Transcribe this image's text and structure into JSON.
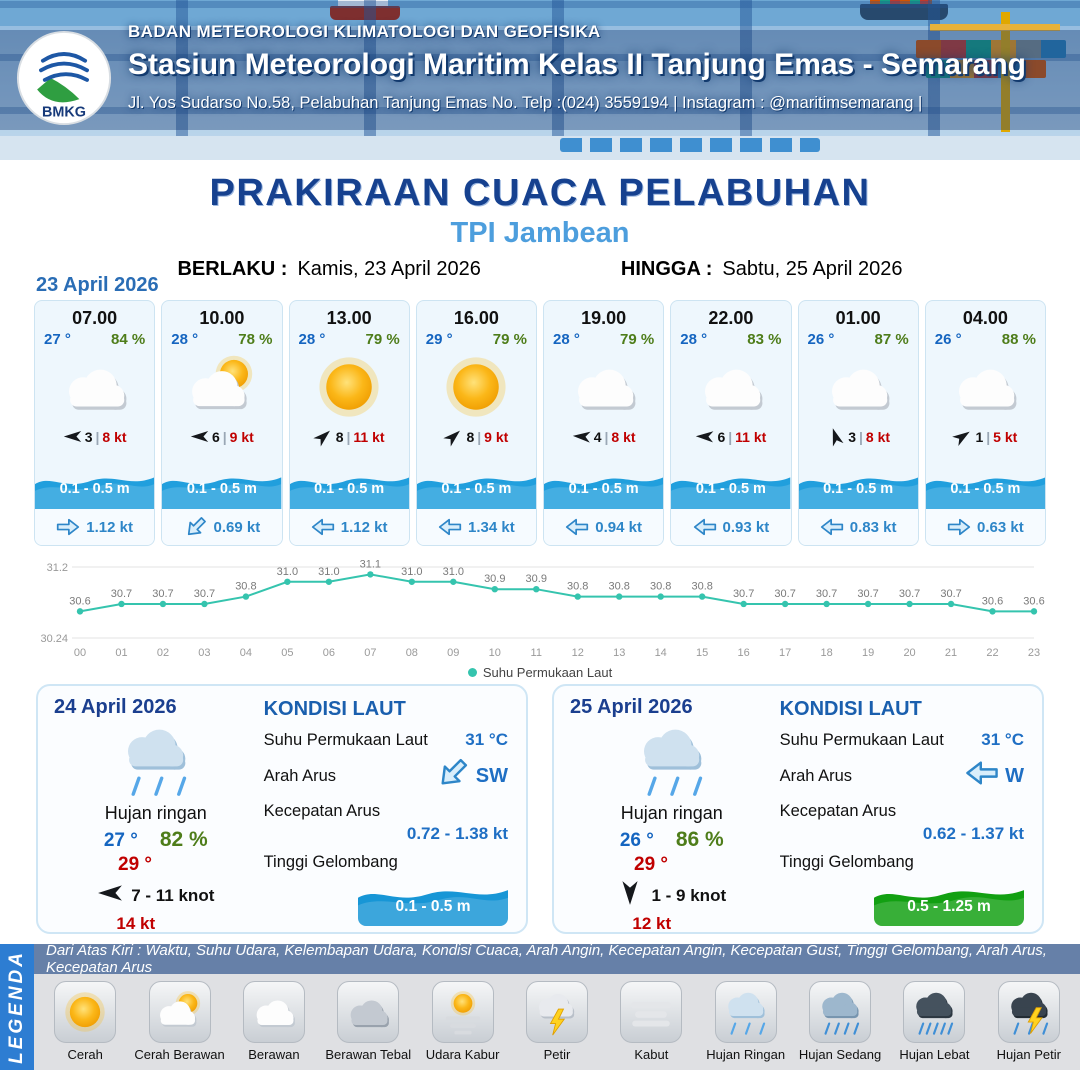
{
  "header": {
    "logo_text": "BMKG",
    "agency": "BADAN METEOROLOGI KLIMATOLOGI DAN GEOFISIKA",
    "station": "Stasiun Meteorologi Maritim Kelas II Tanjung Emas - Semarang",
    "address": "Jl. Yos Sudarso No.58, Pelabuhan Tanjung Emas No. Telp :(024) 3559194 | Instagram : @maritimsemarang |"
  },
  "title": {
    "main": "PRAKIRAAN CUACA PELABUHAN",
    "location": "TPI Jambean",
    "berlaku_label": "BERLAKU :",
    "berlaku_value": "Kamis, 23 April 2026",
    "hingga_label": "HINGGA :",
    "hingga_value": "Sabtu, 25 April 2026"
  },
  "forecast_date": "23 April 2026",
  "ui": {
    "pipe": "|"
  },
  "colors": {
    "accent_navy": "#16418f",
    "accent_blue": "#4d9edd",
    "temp_blue": "#1565c0",
    "humidity_green": "#4e7d1a",
    "gust_red": "#c00000",
    "wave_blue": "#1796d6",
    "wave_green": "#12a012",
    "chart_teal": "#35c4ae"
  },
  "cards": [
    {
      "time": "07.00",
      "temp": "27 °",
      "rh": "84 %",
      "icon": "cloudy",
      "wind_dir_deg": 180,
      "wind": "3",
      "gust": "8 kt",
      "wave": "0.1 - 0.5 m",
      "wave_color": "#219fdd",
      "current_dir_deg": 0,
      "current": "1.12 kt"
    },
    {
      "time": "10.00",
      "temp": "28 °",
      "rh": "78 %",
      "icon": "partly",
      "wind_dir_deg": 180,
      "wind": "6",
      "gust": "9 kt",
      "wave": "0.1 - 0.5 m",
      "wave_color": "#219fdd",
      "current_dir_deg": 135,
      "current": "0.69 kt"
    },
    {
      "time": "13.00",
      "temp": "28 °",
      "rh": "79 %",
      "icon": "sunny",
      "wind_dir_deg": 318,
      "wind": "8",
      "gust": "11 kt",
      "wave": "0.1 - 0.5 m",
      "wave_color": "#219fdd",
      "current_dir_deg": 180,
      "current": "1.12 kt"
    },
    {
      "time": "16.00",
      "temp": "29 °",
      "rh": "79 %",
      "icon": "sunny",
      "wind_dir_deg": 318,
      "wind": "8",
      "gust": "9 kt",
      "wave": "0.1 - 0.5 m",
      "wave_color": "#219fdd",
      "current_dir_deg": 180,
      "current": "1.34 kt"
    },
    {
      "time": "19.00",
      "temp": "28 °",
      "rh": "79 %",
      "icon": "cloudy",
      "wind_dir_deg": 184,
      "wind": "4",
      "gust": "8 kt",
      "wave": "0.1 - 0.5 m",
      "wave_color": "#219fdd",
      "current_dir_deg": 180,
      "current": "0.94 kt"
    },
    {
      "time": "22.00",
      "temp": "28 °",
      "rh": "83 %",
      "icon": "cloudy",
      "wind_dir_deg": 182,
      "wind": "6",
      "gust": "11 kt",
      "wave": "0.1 - 0.5 m",
      "wave_color": "#219fdd",
      "current_dir_deg": 180,
      "current": "0.93 kt"
    },
    {
      "time": "01.00",
      "temp": "26 °",
      "rh": "87 %",
      "icon": "cloudy",
      "wind_dir_deg": 252,
      "wind": "3",
      "gust": "8 kt",
      "wave": "0.1 - 0.5 m",
      "wave_color": "#219fdd",
      "current_dir_deg": 180,
      "current": "0.83 kt"
    },
    {
      "time": "04.00",
      "temp": "26 °",
      "rh": "88 %",
      "icon": "cloudy",
      "wind_dir_deg": 326,
      "wind": "1",
      "gust": "5 kt",
      "wave": "0.1 - 0.5 m",
      "wave_color": "#219fdd",
      "current_dir_deg": 0,
      "current": "0.63 kt"
    }
  ],
  "chart_data": {
    "type": "line",
    "series": [
      {
        "name": "Suhu Permukaan Laut",
        "values": [
          30.6,
          30.7,
          30.7,
          30.7,
          30.8,
          31.0,
          31.0,
          31.1,
          31.0,
          31.0,
          30.9,
          30.9,
          30.8,
          30.8,
          30.8,
          30.8,
          30.7,
          30.7,
          30.7,
          30.7,
          30.7,
          30.7,
          30.6,
          30.6
        ]
      }
    ],
    "x": [
      "00",
      "01",
      "02",
      "03",
      "04",
      "05",
      "06",
      "07",
      "08",
      "09",
      "10",
      "11",
      "12",
      "13",
      "14",
      "15",
      "16",
      "17",
      "18",
      "19",
      "20",
      "21",
      "22",
      "23"
    ],
    "ylim": [
      30.24,
      31.2
    ],
    "yticks": [
      "31.2",
      "30.24"
    ],
    "grid": true,
    "legend_position": "bottom",
    "line_color": "#35c4ae"
  },
  "day_cards": [
    {
      "date": "24 April 2026",
      "icon": "rain-light",
      "condition": "Hujan ringan",
      "temp_min": "27 °",
      "rh": "82 %",
      "temp_max": "29 °",
      "wind_dir_deg": 180,
      "wind_range": "7 - 11 knot",
      "gust": "14 kt",
      "sea": {
        "title": "KONDISI LAUT",
        "sst_label": "Suhu Permukaan Laut",
        "sst": "31 °C",
        "arus_label": "Arah Arus",
        "arus_dir": "SW",
        "arus_dir_deg": 135,
        "kec_label": "Kecepatan Arus",
        "kec": "0.72 - 1.38 kt",
        "gel_label": "Tinggi Gelombang",
        "gel": "0.1 - 0.5 m",
        "gel_color": "#1796d6"
      }
    },
    {
      "date": "25 April 2026",
      "icon": "rain-light",
      "condition": "Hujan ringan",
      "temp_min": "26 °",
      "rh": "86 %",
      "temp_max": "29 °",
      "wind_dir_deg": 90,
      "wind_range": "1 - 9 knot",
      "gust": "12 kt",
      "sea": {
        "title": "KONDISI LAUT",
        "sst_label": "Suhu Permukaan Laut",
        "sst": "31 °C",
        "arus_label": "Arah Arus",
        "arus_dir": "W",
        "arus_dir_deg": 180,
        "kec_label": "Kecepatan Arus",
        "kec": "0.62 - 1.37 kt",
        "gel_label": "Tinggi Gelombang",
        "gel": "0.5 - 1.25 m",
        "gel_color": "#12a012"
      }
    }
  ],
  "legend": {
    "title": "LEGENDA",
    "description": "Dari Atas Kiri : Waktu, Suhu Udara, Kelembapan Udara, Kondisi Cuaca, Arah Angin, Kecepatan Angin, Kecepatan Gust, Tinggi Gelombang, Arah Arus, Kecepatan Arus",
    "items": [
      {
        "label": "Cerah",
        "icon": "sunny"
      },
      {
        "label": "Cerah Berawan",
        "icon": "partly"
      },
      {
        "label": "Berawan",
        "icon": "cloudy"
      },
      {
        "label": "Berawan Tebal",
        "icon": "thick"
      },
      {
        "label": "Udara Kabur",
        "icon": "haze"
      },
      {
        "label": "Petir",
        "icon": "thunder"
      },
      {
        "label": "Kabut",
        "icon": "fog"
      },
      {
        "label": "Hujan Ringan",
        "icon": "rain-light"
      },
      {
        "label": "Hujan Sedang",
        "icon": "rain-medium"
      },
      {
        "label": "Hujan Lebat",
        "icon": "rain-heavy"
      },
      {
        "label": "Hujan Petir",
        "icon": "rain-thunder"
      }
    ]
  }
}
